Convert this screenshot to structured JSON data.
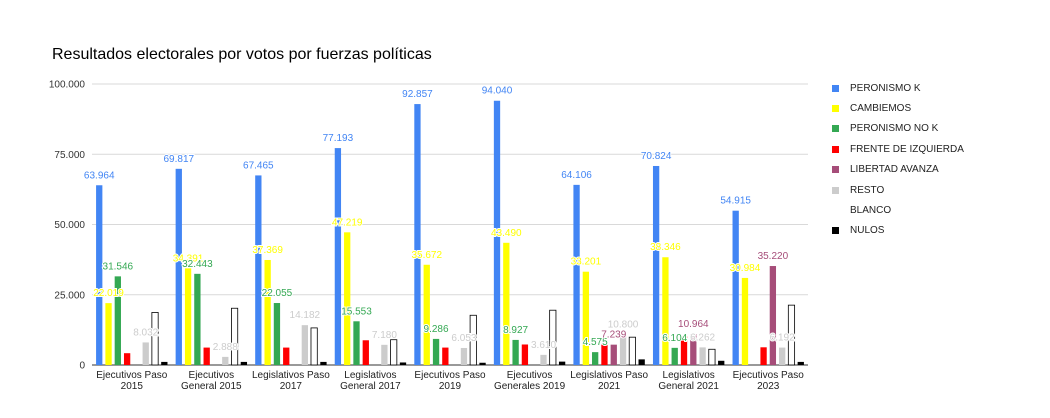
{
  "chart_data": {
    "type": "bar",
    "title": "Resultados electorales por votos por fuerzas políticas",
    "xlabel": "",
    "ylabel": "",
    "ylim": [
      0,
      100000
    ],
    "y_ticks": [
      0,
      25000,
      50000,
      75000,
      100000
    ],
    "y_tick_labels": [
      "0",
      "25.000",
      "50.000",
      "75.000",
      "100.000"
    ],
    "grid": true,
    "legend_position": "right",
    "categories": [
      [
        "Ejecutivos Paso",
        "2015"
      ],
      [
        "Ejecutivos",
        "General 2015"
      ],
      [
        "Legislativos Paso",
        "2017"
      ],
      [
        "Legislativos",
        "General 2017"
      ],
      [
        "Ejecutivos Paso",
        "2019"
      ],
      [
        "Ejecutivos",
        "Generales 2019"
      ],
      [
        "Legislativos Paso",
        "2021"
      ],
      [
        "Legislativos",
        "General 2021"
      ],
      [
        "Ejecutivos Paso",
        "2023"
      ]
    ],
    "series": [
      {
        "name": "PERONISMO K",
        "color": "#4285f4",
        "values": [
          63964,
          69817,
          67465,
          77193,
          92857,
          94040,
          64106,
          70824,
          54915
        ],
        "labels": [
          "63.964",
          "69.817",
          "67.465",
          "77.193",
          "92.857",
          "94.040",
          "64.106",
          "70.824",
          "54.915"
        ]
      },
      {
        "name": "CAMBIEMOS",
        "color": "#ffff00",
        "values": [
          22019,
          34391,
          37369,
          47219,
          35672,
          43490,
          33201,
          38346,
          30984
        ],
        "labels": [
          "22.019",
          "34.391",
          "37.369",
          "47.219",
          "35.672",
          "43.490",
          "33.201",
          "38.346",
          "30.984"
        ]
      },
      {
        "name": "PERONISMO NO K",
        "color": "#34a853",
        "values": [
          31546,
          32443,
          22055,
          15553,
          9286,
          8927,
          4575,
          6104,
          null
        ],
        "labels": [
          "31.546",
          "32.443",
          "22.055",
          "15.553",
          "9.286",
          "8.927",
          "4.575",
          "6.104",
          null
        ]
      },
      {
        "name": "FRENTE DE IZQUIERDA",
        "color": "#ff0000",
        "values": [
          4200,
          6200,
          6200,
          8800,
          6200,
          7300,
          7239,
          10200,
          6300
        ],
        "labels": [
          null,
          null,
          null,
          null,
          null,
          null,
          null,
          null,
          null
        ]
      },
      {
        "name": "LIBERTAD AVANZA",
        "color": "#a64d79",
        "values": [
          null,
          null,
          null,
          null,
          null,
          null,
          7239,
          10964,
          35220
        ],
        "labels": [
          null,
          null,
          null,
          null,
          null,
          null,
          "7.239",
          "10.964",
          "35.220"
        ]
      },
      {
        "name": "RESTO",
        "color": "#cccccc",
        "values": [
          8032,
          2888,
          14182,
          7180,
          6053,
          3610,
          10800,
          6262,
          6192
        ],
        "labels": [
          "8.032",
          "2.888",
          "14.182",
          "7.180",
          "6.053",
          "3.610",
          "10.800",
          "6.262",
          "6.192"
        ]
      },
      {
        "name": "BLANCO",
        "color": "#ffffff",
        "values": [
          18700,
          20200,
          13200,
          9000,
          17700,
          19500,
          9900,
          5600,
          21300
        ],
        "labels": [
          null,
          null,
          null,
          null,
          null,
          null,
          null,
          null,
          null
        ]
      },
      {
        "name": "NULOS",
        "color": "#000000",
        "values": [
          1100,
          1100,
          1100,
          900,
          800,
          1200,
          2000,
          1500,
          1100
        ],
        "labels": [
          null,
          null,
          null,
          null,
          null,
          null,
          null,
          null,
          null
        ]
      }
    ]
  },
  "label_colors": [
    "#4285f4",
    "#ffff00",
    "#34a853",
    "#ff0000",
    "#a64d79",
    "#cccccc",
    "#ffffff",
    "#000000"
  ]
}
